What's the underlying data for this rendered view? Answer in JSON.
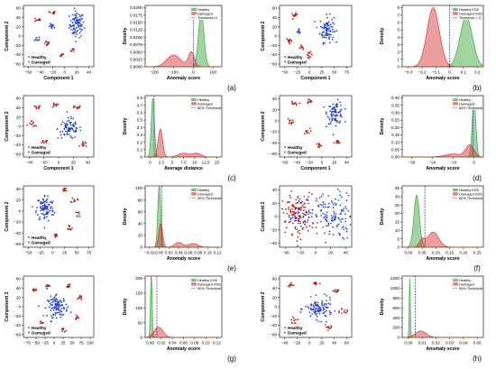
{
  "colors": {
    "healthy": "#2ca02c",
    "damaged": "#d62728",
    "scatter_healthy": "#1f3fcf",
    "scatter_damaged": "#b01818",
    "threshold": "#2233aa"
  },
  "chart_data": [
    {
      "id": "a-scatter",
      "type": "scatter",
      "xlabel": "Component 1",
      "ylabel": "Component 2",
      "xticks": [
        -60,
        -40,
        -20,
        0,
        20,
        40
      ],
      "yticks": [
        -60,
        -40,
        -20,
        0,
        20,
        40,
        60
      ],
      "legend": [
        "Healthy",
        "Damaged"
      ],
      "clusters": [
        {
          "series": "Healthy",
          "x": 20,
          "y": 25,
          "rx": 12,
          "ry": 28,
          "n": 90
        },
        {
          "series": "Healthy",
          "x": -20,
          "y": 20,
          "rx": 6,
          "ry": 6,
          "n": 12
        },
        {
          "series": "Healthy",
          "x": -45,
          "y": -5,
          "rx": 5,
          "ry": 6,
          "n": 8
        },
        {
          "series": "Damaged",
          "x": -45,
          "y": 35,
          "rx": 5,
          "ry": 5,
          "n": 10
        },
        {
          "series": "Damaged",
          "x": -20,
          "y": 50,
          "rx": 5,
          "ry": 4,
          "n": 10
        },
        {
          "series": "Damaged",
          "x": -30,
          "y": -15,
          "rx": 6,
          "ry": 6,
          "n": 12
        },
        {
          "series": "Damaged",
          "x": -5,
          "y": -40,
          "rx": 5,
          "ry": 5,
          "n": 10
        },
        {
          "series": "Damaged",
          "x": 15,
          "y": -30,
          "rx": 5,
          "ry": 5,
          "n": 8
        }
      ]
    },
    {
      "id": "a-density",
      "type": "area",
      "xlabel": "Anomaly score",
      "ylabel": "Density",
      "xticks": [
        -200,
        -100,
        0,
        100
      ],
      "yticks": [
        0.0,
        0.0025,
        0.005,
        0.0075,
        0.01,
        0.0125,
        0.015,
        0.0175,
        0.02
      ],
      "ytick_labels": [
        "0.0000",
        "0.0025",
        "0.0050",
        "0.0075",
        "0.0100",
        "0.0125",
        "0.0150",
        "0.0175",
        "0.0200"
      ],
      "legend": [
        "Healthy",
        "Damaged",
        "Threshold=0"
      ],
      "threshold": 0,
      "series": [
        {
          "name": "Healthy",
          "peaks": [
            [
              40,
              0.0185,
              14
            ]
          ]
        },
        {
          "name": "Damaged",
          "peaks": [
            [
              -100,
              0.004,
              35
            ],
            [
              -10,
              0.005,
              15
            ]
          ]
        }
      ]
    },
    {
      "id": "b-scatter",
      "type": "scatter",
      "xlabel": "Component 1",
      "ylabel": "Component 2",
      "xticks": [
        -50,
        -25,
        0,
        25,
        50,
        75
      ],
      "yticks": [
        -60,
        -40,
        -20,
        0,
        20,
        40,
        60
      ],
      "legend": [
        "Healthy",
        "Damaged"
      ],
      "clusters": [
        {
          "series": "Healthy",
          "x": 35,
          "y": 15,
          "rx": 14,
          "ry": 28,
          "n": 90
        },
        {
          "series": "Healthy",
          "x": -20,
          "y": 10,
          "rx": 5,
          "ry": 6,
          "n": 10
        },
        {
          "series": "Damaged",
          "x": -30,
          "y": 45,
          "rx": 6,
          "ry": 5,
          "n": 12
        },
        {
          "series": "Damaged",
          "x": -40,
          "y": -10,
          "rx": 6,
          "ry": 6,
          "n": 12
        },
        {
          "series": "Damaged",
          "x": 0,
          "y": -40,
          "rx": 6,
          "ry": 6,
          "n": 12
        },
        {
          "series": "Damaged",
          "x": -15,
          "y": -25,
          "rx": 5,
          "ry": 5,
          "n": 8
        }
      ]
    },
    {
      "id": "b-density",
      "type": "area",
      "xlabel": "Anomaly score",
      "ylabel": "Density",
      "xticks": [
        -0.3,
        -0.2,
        -0.1,
        0.0,
        0.1,
        0.2
      ],
      "yticks": [
        0,
        1,
        2,
        3,
        4,
        5,
        6,
        7,
        8
      ],
      "legend": [
        "Healthy KDE",
        "Damaged KDE",
        "Threshold = 0"
      ],
      "threshold": 0,
      "series": [
        {
          "name": "Healthy KDE",
          "peaks": [
            [
              0.12,
              6.8,
              0.045
            ]
          ]
        },
        {
          "name": "Damaged KDE",
          "peaks": [
            [
              -0.12,
              8.0,
              0.045
            ]
          ]
        }
      ]
    },
    {
      "id": "c-scatter",
      "type": "scatter",
      "xlabel": "Component 1",
      "ylabel": "Component 2",
      "xticks": [
        -40,
        -20,
        0,
        20,
        40
      ],
      "yticks": [
        -60,
        -40,
        -20,
        0,
        20,
        40,
        60
      ],
      "legend": [
        "Healthy",
        "Damaged"
      ],
      "clusters": [
        {
          "series": "Healthy",
          "x": 15,
          "y": -5,
          "rx": 16,
          "ry": 22,
          "n": 80
        },
        {
          "series": "Damaged",
          "x": -30,
          "y": 40,
          "rx": 6,
          "ry": 5,
          "n": 10
        },
        {
          "series": "Damaged",
          "x": -5,
          "y": 45,
          "rx": 6,
          "ry": 5,
          "n": 10
        },
        {
          "series": "Damaged",
          "x": 25,
          "y": 40,
          "rx": 6,
          "ry": 5,
          "n": 10
        },
        {
          "series": "Damaged",
          "x": -35,
          "y": 5,
          "rx": 6,
          "ry": 6,
          "n": 10
        },
        {
          "series": "Damaged",
          "x": -20,
          "y": -35,
          "rx": 6,
          "ry": 6,
          "n": 10
        },
        {
          "series": "Damaged",
          "x": 35,
          "y": -40,
          "rx": 6,
          "ry": 5,
          "n": 10
        }
      ]
    },
    {
      "id": "c-density",
      "type": "area",
      "xlabel": "Average distance",
      "ylabel": "Density",
      "xticks": [
        0.0,
        2.5,
        5.0,
        7.5,
        10.0,
        12.5,
        15.0
      ],
      "yticks": [
        0.0,
        0.1,
        0.2,
        0.3,
        0.4,
        0.5,
        0.6,
        0.7,
        0.8
      ],
      "legend": [
        "Healthy",
        "Damaged",
        "80% Threshold"
      ],
      "threshold": 0.9,
      "series": [
        {
          "name": "Healthy",
          "peaks": [
            [
              0.6,
              0.8,
              0.35
            ]
          ]
        },
        {
          "name": "Damaged",
          "peaks": [
            [
              2.3,
              0.38,
              0.5
            ],
            [
              7.5,
              0.05,
              1.2
            ],
            [
              10.5,
              0.05,
              1.0
            ]
          ]
        }
      ]
    },
    {
      "id": "d-scatter",
      "type": "scatter",
      "xlabel": "Component 1",
      "ylabel": "Component 2",
      "xticks": [
        -60,
        -40,
        -20,
        0,
        20,
        40
      ],
      "yticks": [
        -60,
        -40,
        -20,
        0,
        20,
        40
      ],
      "legend": [
        "Healthy",
        "Damaged"
      ],
      "clusters": [
        {
          "series": "Healthy",
          "x": 22,
          "y": 15,
          "rx": 13,
          "ry": 20,
          "n": 90
        },
        {
          "series": "Damaged",
          "x": -45,
          "y": 30,
          "rx": 6,
          "ry": 5,
          "n": 10
        },
        {
          "series": "Damaged",
          "x": -20,
          "y": 35,
          "rx": 6,
          "ry": 5,
          "n": 10
        },
        {
          "series": "Damaged",
          "x": -50,
          "y": 0,
          "rx": 5,
          "ry": 5,
          "n": 10
        },
        {
          "series": "Damaged",
          "x": -25,
          "y": -20,
          "rx": 6,
          "ry": 6,
          "n": 10
        },
        {
          "series": "Damaged",
          "x": -5,
          "y": -45,
          "rx": 6,
          "ry": 5,
          "n": 10
        },
        {
          "series": "Damaged",
          "x": 25,
          "y": -40,
          "rx": 5,
          "ry": 5,
          "n": 10
        }
      ]
    },
    {
      "id": "d-density",
      "type": "area",
      "xlabel": "Anomaly score",
      "ylabel": "Density",
      "xticks": [
        -30,
        -20,
        -10,
        0
      ],
      "yticks": [
        0.0,
        0.05,
        0.1,
        0.15,
        0.2,
        0.25,
        0.3,
        0.35,
        0.4
      ],
      "ytick_labels": [
        "0.00",
        "0.05",
        "0.10",
        "0.15",
        "0.20",
        "0.25",
        "0.30",
        "0.35",
        "0.40"
      ],
      "legend": [
        "Healthy",
        "Damaged",
        "80% Threshold"
      ],
      "threshold": -0.5,
      "series": [
        {
          "name": "Healthy",
          "peaks": [
            [
              0,
              0.38,
              0.9
            ]
          ]
        },
        {
          "name": "Damaged",
          "peaks": [
            [
              -2,
              0.08,
              2
            ],
            [
              -10,
              0.02,
              4
            ]
          ]
        }
      ]
    },
    {
      "id": "e-scatter",
      "type": "scatter",
      "xlabel": "",
      "ylabel": "Component 2",
      "xticks": [
        -50,
        -25,
        0,
        25,
        50,
        75
      ],
      "yticks": [
        -60,
        -40,
        -20,
        0,
        20,
        40
      ],
      "legend": [
        "Healthy",
        "Damaged"
      ],
      "clusters": [
        {
          "series": "Healthy",
          "x": -15,
          "y": 5,
          "rx": 18,
          "ry": 25,
          "n": 100
        },
        {
          "series": "Damaged",
          "x": 25,
          "y": 40,
          "rx": 6,
          "ry": 5,
          "n": 10
        },
        {
          "series": "Damaged",
          "x": 45,
          "y": 20,
          "rx": 6,
          "ry": 5,
          "n": 10
        },
        {
          "series": "Damaged",
          "x": 55,
          "y": -5,
          "rx": 5,
          "ry": 5,
          "n": 8
        },
        {
          "series": "Damaged",
          "x": 35,
          "y": -30,
          "rx": 6,
          "ry": 6,
          "n": 10
        },
        {
          "series": "Damaged",
          "x": 5,
          "y": -45,
          "rx": 6,
          "ry": 5,
          "n": 10
        },
        {
          "series": "Damaged",
          "x": -20,
          "y": -58,
          "rx": 6,
          "ry": 4,
          "n": 10
        }
      ]
    },
    {
      "id": "e-density",
      "type": "area",
      "xlabel": "Anomaly score",
      "ylabel": "Density",
      "xticks": [
        -0.02,
        0.0,
        0.02,
        0.04,
        0.06,
        0.08,
        0.1,
        0.12
      ],
      "yticks": [
        0,
        20,
        40,
        60,
        80,
        100
      ],
      "xtick_labels": [
        "−0.02",
        "0.00",
        "0.02",
        "0.04",
        "0.06",
        "0.08",
        "0.10",
        "0.12"
      ],
      "legend": [
        "Healthy",
        "Damaged",
        "90% Threshold"
      ],
      "threshold": 0.005,
      "series": [
        {
          "name": "Healthy",
          "peaks": [
            [
              0.0,
              108,
              0.003
            ]
          ]
        },
        {
          "name": "Damaged",
          "peaks": [
            [
              0.003,
              40,
              0.004
            ],
            [
              0.04,
              8,
              0.008
            ],
            [
              0.07,
              6,
              0.01
            ]
          ]
        }
      ]
    },
    {
      "id": "f-scatter",
      "type": "scatter",
      "xlabel": "",
      "ylabel": "Component 2",
      "xticks": [
        -40,
        -20,
        0,
        20,
        40
      ],
      "yticks": [
        -40,
        -20,
        0,
        20,
        40
      ],
      "legend": [],
      "clusters": [
        {
          "series": "Healthy",
          "x": 20,
          "y": 0,
          "rx": 30,
          "ry": 35,
          "n": 140
        },
        {
          "series": "Damaged",
          "x": -25,
          "y": 5,
          "rx": 20,
          "ry": 30,
          "n": 110
        },
        {
          "series": "Healthy",
          "x": -20,
          "y": 0,
          "rx": 18,
          "ry": 28,
          "n": 40
        }
      ]
    },
    {
      "id": "f-density",
      "type": "area",
      "xlabel": "Anomaly score",
      "ylabel": "Density",
      "xticks": [
        0.0,
        0.05,
        0.1,
        0.15,
        0.2,
        0.25
      ],
      "yticks": [
        0,
        5,
        10,
        15,
        20,
        25,
        30,
        35
      ],
      "xtick_labels": [
        "0.00",
        "0.05",
        "0.10",
        "0.15",
        "0.20",
        "0.25"
      ],
      "legend": [
        "Healthy KDE",
        "Damaged KDE",
        "80% Threshold"
      ],
      "threshold": 0.06,
      "series": [
        {
          "name": "Healthy KDE",
          "peaks": [
            [
              0.03,
              31,
              0.01
            ]
          ]
        },
        {
          "name": "Damaged KDE",
          "peaks": [
            [
              0.09,
              9,
              0.02
            ],
            [
              0.05,
              4,
              0.01
            ]
          ]
        }
      ]
    },
    {
      "id": "g-scatter",
      "type": "scatter",
      "xlabel": "",
      "ylabel": "Component 2",
      "xticks": [
        -75,
        -50,
        -25,
        0,
        25,
        50,
        75,
        100
      ],
      "yticks": [
        -60,
        -40,
        -20,
        0,
        20,
        40,
        60
      ],
      "legend": [
        "Healthy",
        "Damaged"
      ],
      "clusters": [
        {
          "series": "Healthy",
          "x": 10,
          "y": 0,
          "rx": 28,
          "ry": 22,
          "n": 110
        },
        {
          "series": "Damaged",
          "x": -55,
          "y": 35,
          "rx": 6,
          "ry": 5,
          "n": 10
        },
        {
          "series": "Damaged",
          "x": -20,
          "y": 45,
          "rx": 6,
          "ry": 5,
          "n": 10
        },
        {
          "series": "Damaged",
          "x": 40,
          "y": 45,
          "rx": 6,
          "ry": 5,
          "n": 10
        },
        {
          "series": "Damaged",
          "x": 70,
          "y": 20,
          "rx": 6,
          "ry": 6,
          "n": 10
        },
        {
          "series": "Damaged",
          "x": 65,
          "y": -25,
          "rx": 6,
          "ry": 6,
          "n": 10
        },
        {
          "series": "Damaged",
          "x": 25,
          "y": -50,
          "rx": 6,
          "ry": 5,
          "n": 10
        },
        {
          "series": "Damaged",
          "x": -35,
          "y": -35,
          "rx": 6,
          "ry": 6,
          "n": 10
        }
      ]
    },
    {
      "id": "g-density",
      "type": "area",
      "xlabel": "Anomaly score",
      "ylabel": "Density",
      "xticks": [
        0.0,
        0.02,
        0.04,
        0.06,
        0.08,
        0.1,
        0.12
      ],
      "yticks": [
        0,
        50,
        100,
        150,
        200
      ],
      "xtick_labels": [
        "0.00",
        "0.02",
        "0.04",
        "0.06",
        "0.08",
        "0.10",
        "0.12"
      ],
      "legend": [
        "Healthy KDE",
        "Damaged KDE",
        "95% Threshold"
      ],
      "threshold": 0.012,
      "series": [
        {
          "name": "Healthy KDE",
          "peaks": [
            [
              0.002,
              220,
              0.0015
            ]
          ]
        },
        {
          "name": "Damaged KDE",
          "peaks": [
            [
              0.015,
              35,
              0.008
            ]
          ]
        }
      ]
    },
    {
      "id": "h-scatter",
      "type": "scatter",
      "xlabel": "",
      "ylabel": "Component 2",
      "xticks": [
        -40,
        -20,
        0,
        20,
        40,
        60
      ],
      "yticks": [
        -60,
        -40,
        -20,
        0,
        20,
        40,
        60
      ],
      "legend": [
        "Healthy",
        "Damaged"
      ],
      "clusters": [
        {
          "series": "Healthy",
          "x": 15,
          "y": -5,
          "rx": 22,
          "ry": 22,
          "n": 110
        },
        {
          "series": "Damaged",
          "x": -30,
          "y": 45,
          "rx": 6,
          "ry": 5,
          "n": 10
        },
        {
          "series": "Damaged",
          "x": 10,
          "y": 50,
          "rx": 6,
          "ry": 5,
          "n": 10
        },
        {
          "series": "Damaged",
          "x": 45,
          "y": 35,
          "rx": 6,
          "ry": 5,
          "n": 10
        },
        {
          "series": "Damaged",
          "x": 55,
          "y": -10,
          "rx": 6,
          "ry": 6,
          "n": 10
        },
        {
          "series": "Damaged",
          "x": 30,
          "y": -45,
          "rx": 6,
          "ry": 5,
          "n": 10
        },
        {
          "series": "Damaged",
          "x": -25,
          "y": -30,
          "rx": 6,
          "ry": 6,
          "n": 10
        }
      ]
    },
    {
      "id": "h-density",
      "type": "area",
      "xlabel": "Anomaly score",
      "ylabel": "Density",
      "xticks": [
        0.0,
        0.01,
        0.02,
        0.03,
        0.04,
        0.05
      ],
      "yticks": [
        0,
        200,
        400,
        600,
        800,
        1000,
        1200
      ],
      "xtick_labels": [
        "0.00",
        "0.01",
        "0.02",
        "0.03",
        "0.04",
        "0.05"
      ],
      "legend": [
        "Healthy",
        "Damaged",
        "95% Threshold"
      ],
      "threshold": 0.005,
      "series": [
        {
          "name": "Healthy",
          "peaks": [
            [
              0.001,
              1200,
              0.0004
            ]
          ]
        },
        {
          "name": "Damaged",
          "peaks": [
            [
              0.009,
              130,
              0.004
            ]
          ]
        }
      ]
    }
  ],
  "panel_labels": [
    "(a)",
    "(b)",
    "(c)",
    "(d)",
    "(e)",
    "(f)",
    "(g)",
    "(h)"
  ]
}
